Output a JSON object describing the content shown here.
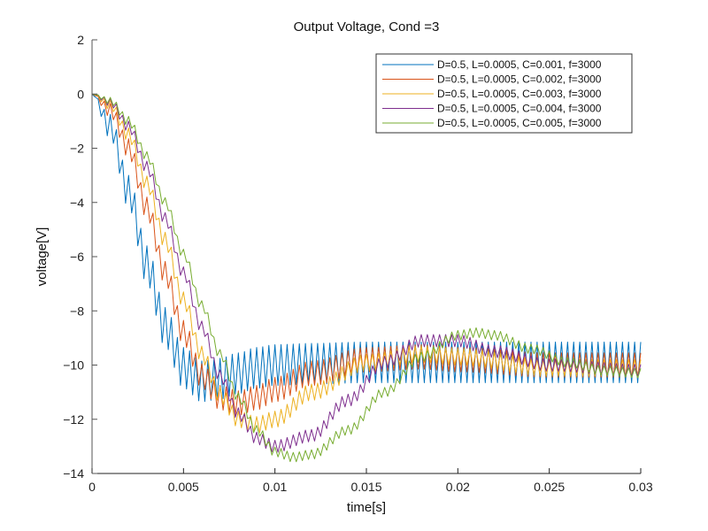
{
  "chart_data": {
    "type": "line",
    "title": "Output Voltage, Cond =3",
    "xlabel": "time[s]",
    "ylabel": "voltage[V]",
    "xlim": [
      0,
      0.03
    ],
    "ylim": [
      -14,
      2
    ],
    "xticks": [
      0,
      0.005,
      0.01,
      0.015,
      0.02,
      0.025,
      0.03
    ],
    "xtick_labels": [
      "0",
      "0.005",
      "0.01",
      "0.015",
      "0.02",
      "0.025",
      "0.03"
    ],
    "yticks": [
      2,
      0,
      -2,
      -4,
      -6,
      -8,
      -10,
      -12,
      -14
    ],
    "ytick_labels": [
      "2",
      "0",
      "−2",
      "−4",
      "−6",
      "−8",
      "−10",
      "−12",
      "−14"
    ],
    "grid": false,
    "legend_position": "top-right",
    "ripple_frequency_hz": 3000,
    "series": [
      {
        "name": "D=0.5, L=0.0005, C=0.001, f=3000",
        "color": "#0072BD",
        "envelope": {
          "t": [
            0,
            0.001,
            0.002,
            0.003,
            0.004,
            0.005,
            0.006,
            0.007,
            0.008,
            0.009,
            0.01,
            0.012,
            0.015,
            0.02,
            0.025,
            0.03
          ],
          "v": [
            0,
            -1.2,
            -3.6,
            -6.3,
            -8.6,
            -10.1,
            -10.6,
            -10.5,
            -10.3,
            -10.1,
            -10.0,
            -9.95,
            -9.9,
            -9.9,
            -9.9,
            -9.9
          ]
        },
        "ripple_pp": [
          0,
          0.9,
          1.2,
          1.4,
          1.45,
          1.5,
          1.5,
          1.5,
          1.5,
          1.5,
          1.5,
          1.5,
          1.5,
          1.5,
          1.5,
          1.5
        ]
      },
      {
        "name": "D=0.5, L=0.0005, C=0.002, f=3000",
        "color": "#D95319",
        "envelope": {
          "t": [
            0,
            0.001,
            0.002,
            0.003,
            0.004,
            0.005,
            0.006,
            0.007,
            0.008,
            0.009,
            0.01,
            0.012,
            0.015,
            0.018,
            0.02,
            0.025,
            0.03
          ],
          "v": [
            0,
            -0.6,
            -2.0,
            -4.2,
            -6.6,
            -8.8,
            -10.4,
            -11.2,
            -11.4,
            -11.2,
            -10.9,
            -10.3,
            -9.8,
            -9.7,
            -9.8,
            -10.0,
            -10.0
          ]
        },
        "ripple_pp": [
          0,
          0.5,
          0.7,
          0.8,
          0.85,
          0.9,
          0.9,
          0.9,
          0.9,
          0.9,
          0.9,
          0.9,
          0.9,
          0.9,
          0.9,
          0.9,
          0.9
        ]
      },
      {
        "name": "D=0.5, L=0.0005, C=0.003, f=3000",
        "color": "#EDB120",
        "envelope": {
          "t": [
            0,
            0.001,
            0.002,
            0.003,
            0.004,
            0.005,
            0.006,
            0.007,
            0.008,
            0.009,
            0.01,
            0.012,
            0.015,
            0.018,
            0.02,
            0.025,
            0.03
          ],
          "v": [
            0,
            -0.4,
            -1.5,
            -3.3,
            -5.4,
            -7.6,
            -9.6,
            -11.1,
            -12.0,
            -12.2,
            -12.0,
            -11.0,
            -9.9,
            -9.6,
            -9.7,
            -10.1,
            -10.1
          ]
        },
        "ripple_pp": [
          0,
          0.35,
          0.5,
          0.55,
          0.6,
          0.6,
          0.6,
          0.6,
          0.6,
          0.6,
          0.6,
          0.6,
          0.6,
          0.6,
          0.6,
          0.6,
          0.6
        ]
      },
      {
        "name": "D=0.5, L=0.0005, C=0.004, f=3000",
        "color": "#7E2F8E",
        "envelope": {
          "t": [
            0,
            0.001,
            0.002,
            0.003,
            0.004,
            0.005,
            0.006,
            0.007,
            0.008,
            0.009,
            0.01,
            0.012,
            0.014,
            0.016,
            0.018,
            0.02,
            0.022,
            0.025,
            0.03
          ],
          "v": [
            0,
            -0.3,
            -1.2,
            -2.7,
            -4.6,
            -6.6,
            -8.6,
            -10.4,
            -11.8,
            -12.7,
            -13.0,
            -12.6,
            -11.3,
            -9.9,
            -9.1,
            -9.1,
            -9.5,
            -10.0,
            -10.2
          ]
        },
        "ripple_pp": [
          0,
          0.3,
          0.4,
          0.45,
          0.45,
          0.45,
          0.45,
          0.45,
          0.45,
          0.45,
          0.45,
          0.45,
          0.45,
          0.45,
          0.45,
          0.45,
          0.45,
          0.45,
          0.45
        ]
      },
      {
        "name": "D=0.5, L=0.0005, C=0.005, f=3000",
        "color": "#77AC30",
        "envelope": {
          "t": [
            0,
            0.001,
            0.002,
            0.003,
            0.004,
            0.005,
            0.006,
            0.007,
            0.008,
            0.009,
            0.01,
            0.011,
            0.012,
            0.014,
            0.016,
            0.018,
            0.02,
            0.021,
            0.022,
            0.024,
            0.026,
            0.028,
            0.03
          ],
          "v": [
            0,
            -0.25,
            -1.0,
            -2.3,
            -4.0,
            -5.9,
            -7.8,
            -9.6,
            -11.2,
            -12.4,
            -13.2,
            -13.4,
            -13.3,
            -12.4,
            -11.0,
            -9.7,
            -8.9,
            -8.8,
            -8.9,
            -9.4,
            -9.9,
            -10.2,
            -10.3
          ]
        },
        "ripple_pp": [
          0,
          0.25,
          0.35,
          0.35,
          0.35,
          0.35,
          0.35,
          0.35,
          0.35,
          0.35,
          0.35,
          0.35,
          0.35,
          0.35,
          0.35,
          0.35,
          0.35,
          0.35,
          0.35,
          0.35,
          0.35,
          0.35,
          0.35
        ]
      }
    ]
  }
}
